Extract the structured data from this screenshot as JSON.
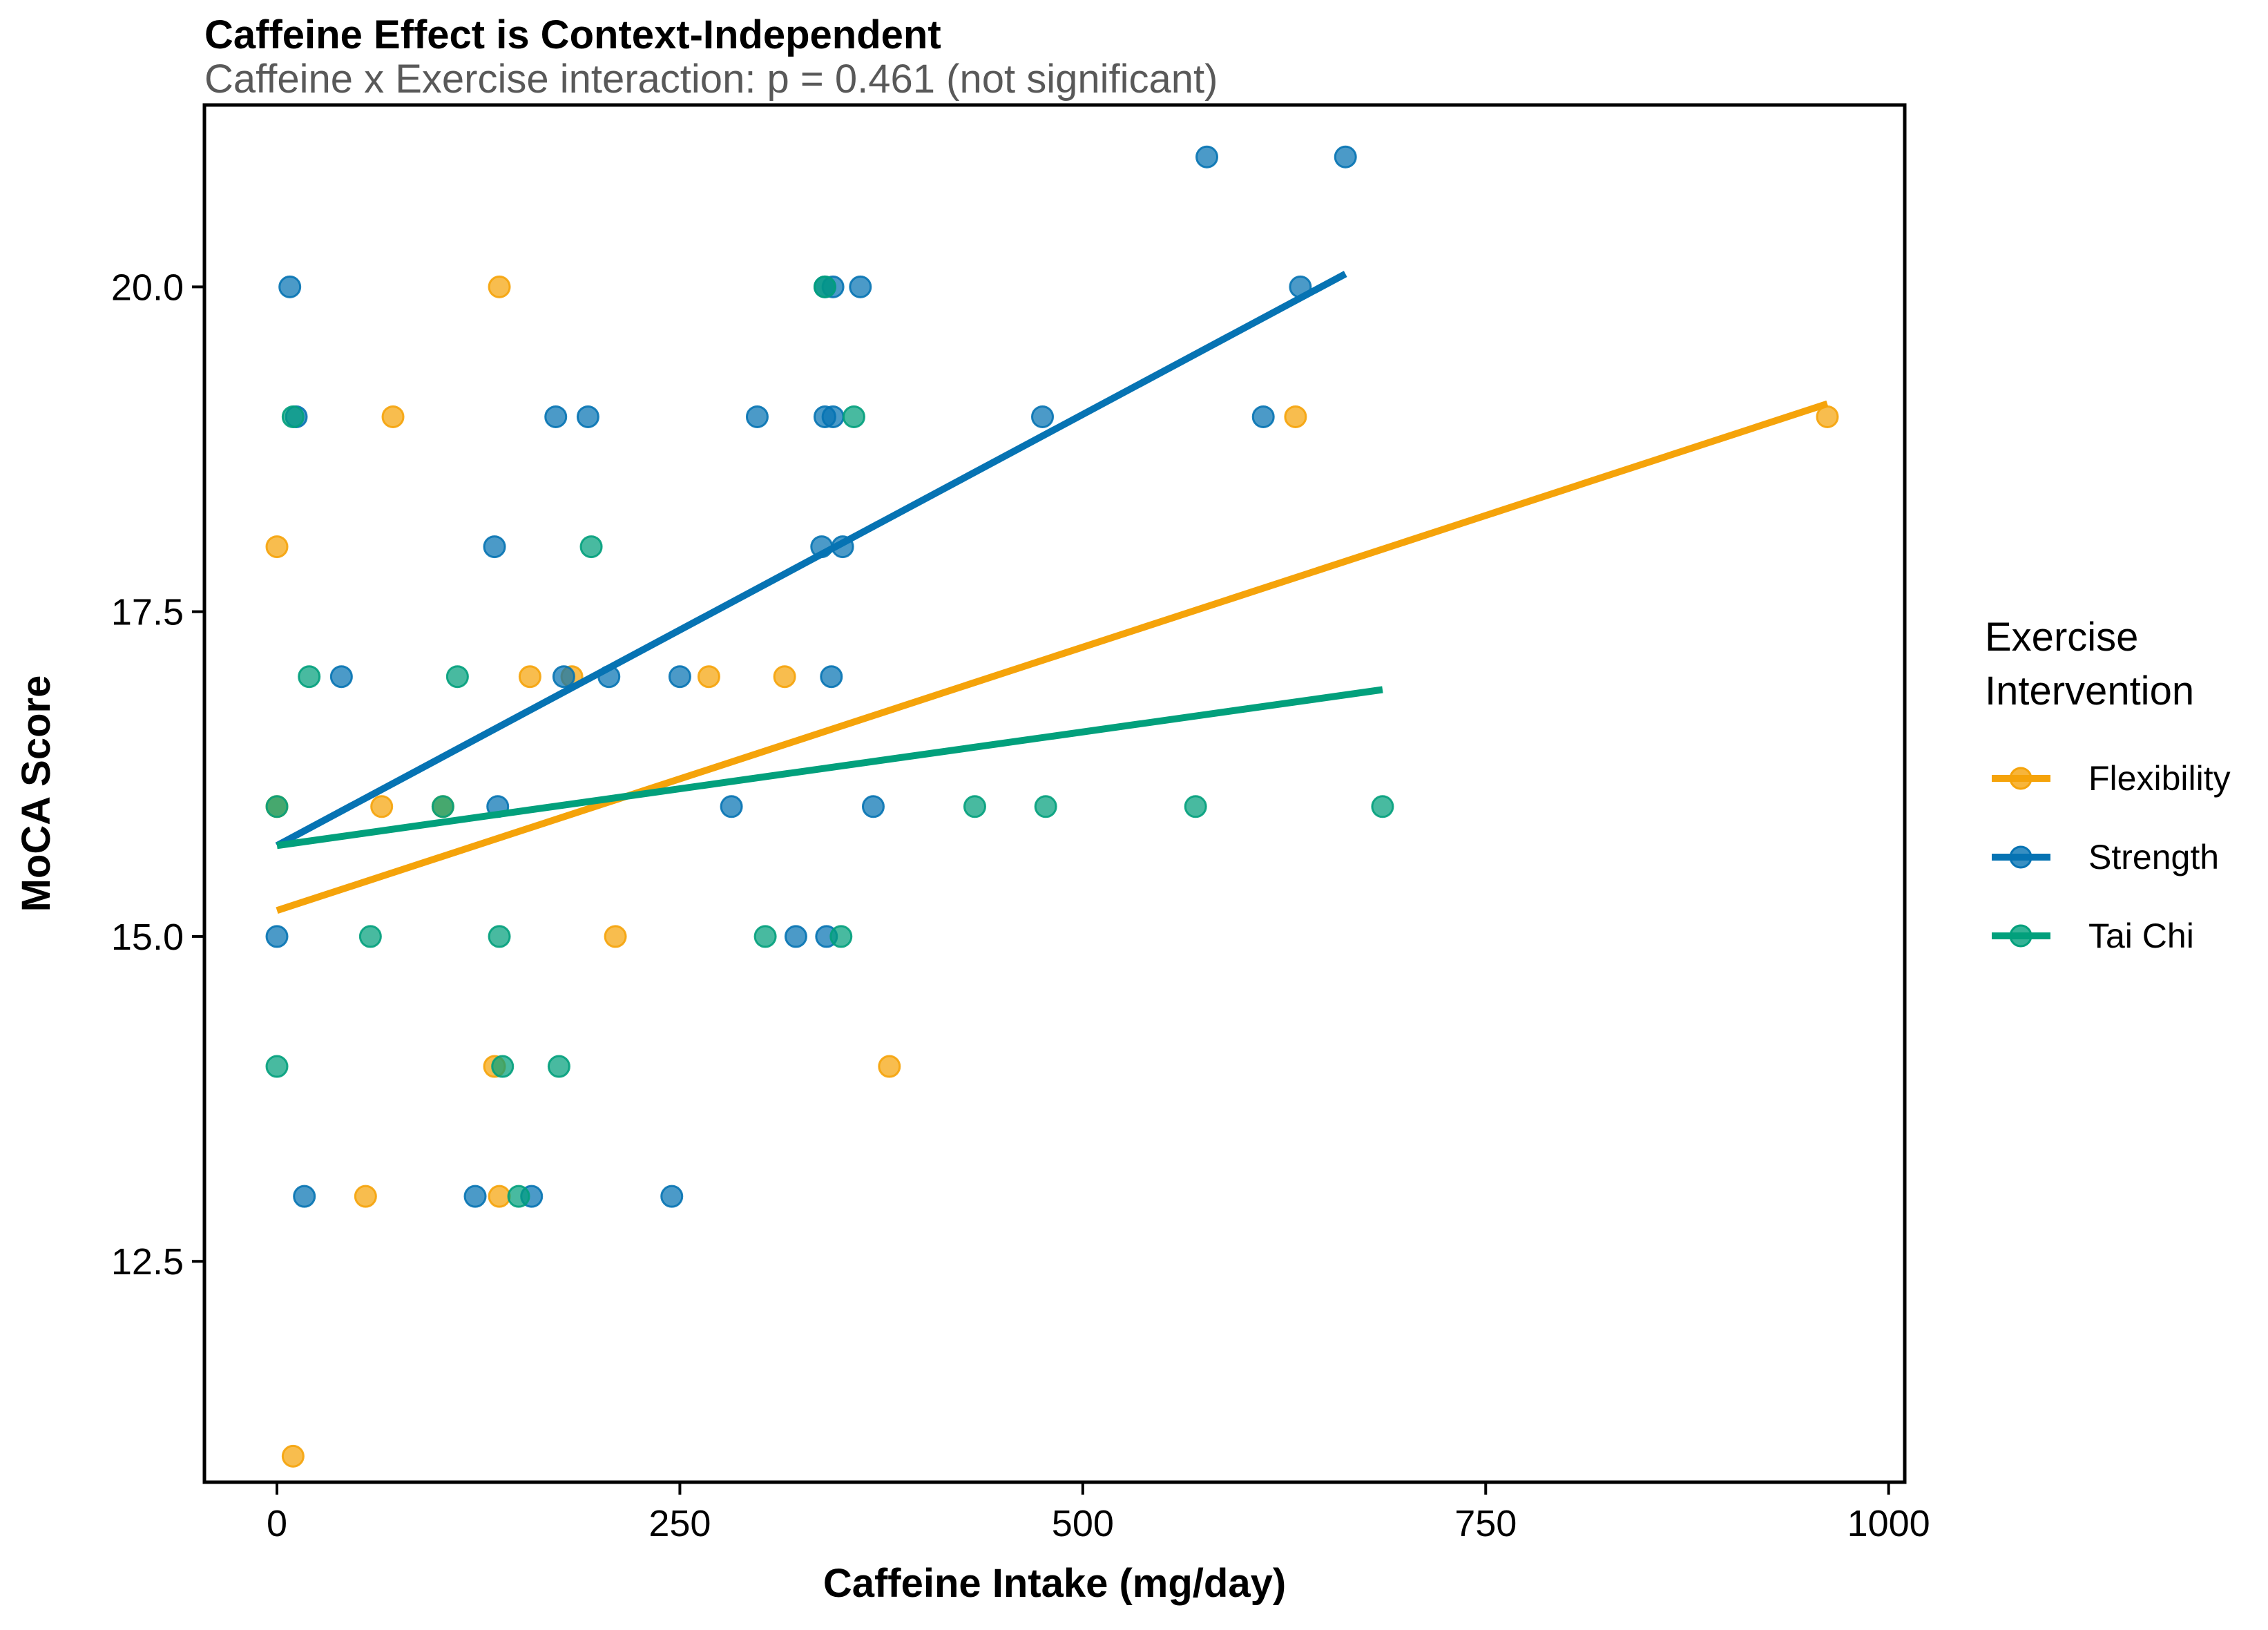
{
  "chart_data": {
    "type": "scatter",
    "title": "Caffeine Effect is Context-Independent",
    "subtitle": "Caffeine x Exercise interaction: p = 0.461 (not significant)",
    "xlabel": "Caffeine Intake (mg/day)",
    "ylabel": "MoCA Score",
    "xlim": [
      -45,
      1010
    ],
    "ylim": [
      10.8,
      21.4
    ],
    "xticks": [
      0,
      250,
      500,
      750,
      1000
    ],
    "xtick_labels": [
      "0",
      "250",
      "500",
      "750",
      "1000"
    ],
    "yticks": [
      12.5,
      15.0,
      17.5,
      20.0
    ],
    "ytick_labels": [
      "12.5",
      "15.0",
      "17.5",
      "20.0"
    ],
    "grid": false,
    "legend": {
      "title": "Exercise Intervention",
      "title_lines": [
        "Exercise",
        "Intervention"
      ],
      "position": "right"
    },
    "series": [
      {
        "name": "Flexibility",
        "color": "#F5A30A",
        "points": [
          [
            0,
            18
          ],
          [
            0,
            16
          ],
          [
            138,
            20
          ],
          [
            72,
            19
          ],
          [
            65,
            16
          ],
          [
            157,
            17
          ],
          [
            183,
            17
          ],
          [
            268,
            17
          ],
          [
            315,
            17
          ],
          [
            103,
            16
          ],
          [
            210,
            15
          ],
          [
            135,
            14
          ],
          [
            380,
            14
          ],
          [
            55,
            13
          ],
          [
            138,
            13
          ],
          [
            10,
            11
          ],
          [
            632,
            19
          ],
          [
            962,
            19
          ]
        ],
        "fit": {
          "x": [
            0,
            962
          ],
          "y": [
            15.2,
            19.1
          ]
        }
      },
      {
        "name": "Strength",
        "color": "#0673B3",
        "points": [
          [
            8,
            20
          ],
          [
            12,
            19
          ],
          [
            40,
            17
          ],
          [
            135,
            18
          ],
          [
            137,
            16
          ],
          [
            0,
            15
          ],
          [
            17,
            13
          ],
          [
            123,
            13
          ],
          [
            158,
            13
          ],
          [
            173,
            19
          ],
          [
            193,
            19
          ],
          [
            178,
            17
          ],
          [
            206,
            17
          ],
          [
            250,
            17
          ],
          [
            245,
            13
          ],
          [
            282,
            16
          ],
          [
            298,
            19
          ],
          [
            340,
            20
          ],
          [
            345,
            20
          ],
          [
            362,
            20
          ],
          [
            340,
            19
          ],
          [
            345,
            19
          ],
          [
            338,
            18
          ],
          [
            351,
            18
          ],
          [
            344,
            17
          ],
          [
            370,
            16
          ],
          [
            341,
            15
          ],
          [
            322,
            15
          ],
          [
            475,
            19
          ],
          [
            612,
            19
          ],
          [
            635,
            20
          ],
          [
            577,
            21
          ],
          [
            663,
            21
          ]
        ],
        "fit": {
          "x": [
            0,
            663
          ],
          "y": [
            15.7,
            20.1
          ]
        }
      },
      {
        "name": "Tai Chi",
        "color": "#02A07C",
        "points": [
          [
            10,
            19
          ],
          [
            20,
            17
          ],
          [
            112,
            17
          ],
          [
            195,
            18
          ],
          [
            103,
            16
          ],
          [
            0,
            16
          ],
          [
            58,
            15
          ],
          [
            138,
            15
          ],
          [
            0,
            14
          ],
          [
            140,
            14
          ],
          [
            175,
            14
          ],
          [
            150,
            13
          ],
          [
            303,
            15
          ],
          [
            350,
            15
          ],
          [
            340,
            20
          ],
          [
            358,
            19
          ],
          [
            433,
            16
          ],
          [
            477,
            16
          ],
          [
            570,
            16
          ],
          [
            686,
            16
          ]
        ],
        "fit": {
          "x": [
            0,
            686
          ],
          "y": [
            15.7,
            16.9
          ]
        }
      }
    ]
  }
}
